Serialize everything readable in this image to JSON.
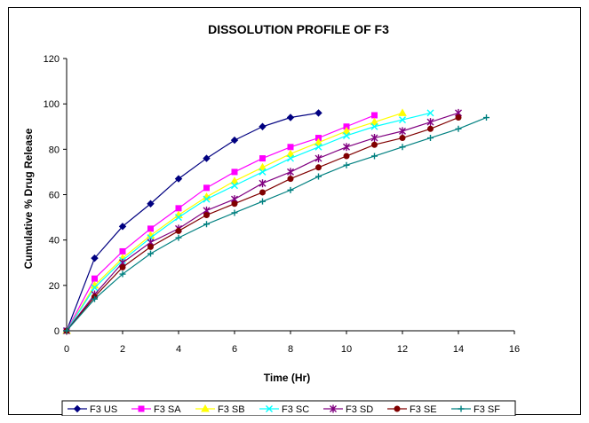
{
  "chart_data": {
    "type": "line",
    "title": "DISSOLUTION PROFILE OF F3",
    "xlabel": "Time (Hr)",
    "ylabel": "Cumulative % Drug Release",
    "xlim": [
      0,
      16
    ],
    "ylim": [
      0,
      120
    ],
    "xticks": [
      "0",
      "2",
      "4",
      "6",
      "8",
      "10",
      "12",
      "14",
      "16"
    ],
    "yticks": [
      "0",
      "20",
      "40",
      "60",
      "80",
      "100",
      "120"
    ],
    "grid": false,
    "legend_position": "bottom",
    "series": [
      {
        "name": "F3 US",
        "color": "#000080",
        "marker": "diamond",
        "x": [
          0,
          1,
          2,
          3,
          4,
          5,
          6,
          7,
          8,
          9
        ],
        "y": [
          0,
          32,
          46,
          56,
          67,
          76,
          84,
          90,
          94,
          96
        ]
      },
      {
        "name": "F3 SA",
        "color": "#ff00ff",
        "marker": "square",
        "x": [
          0,
          1,
          2,
          3,
          4,
          5,
          6,
          7,
          8,
          9,
          10,
          11
        ],
        "y": [
          0,
          23,
          35,
          45,
          54,
          63,
          70,
          76,
          81,
          85,
          90,
          95
        ]
      },
      {
        "name": "F3 SB",
        "color": "#ffff00",
        "marker": "triangle",
        "x": [
          0,
          1,
          2,
          3,
          4,
          5,
          6,
          7,
          8,
          9,
          10,
          11,
          12
        ],
        "y": [
          0,
          20,
          32,
          42,
          51,
          59,
          66,
          72,
          78,
          83,
          88,
          92,
          96
        ]
      },
      {
        "name": "F3 SC",
        "color": "#00ffff",
        "marker": "x",
        "x": [
          0,
          1,
          2,
          3,
          4,
          5,
          6,
          7,
          8,
          9,
          10,
          11,
          12,
          13
        ],
        "y": [
          0,
          19,
          31,
          41,
          50,
          58,
          64,
          70,
          76,
          81,
          86,
          90,
          93,
          96
        ]
      },
      {
        "name": "F3 SD",
        "color": "#800080",
        "marker": "star",
        "x": [
          0,
          1,
          2,
          3,
          4,
          5,
          6,
          7,
          8,
          9,
          10,
          11,
          12,
          13,
          14
        ],
        "y": [
          0,
          16,
          30,
          39,
          45,
          53,
          58,
          65,
          70,
          76,
          81,
          85,
          88,
          92,
          96
        ]
      },
      {
        "name": "F3 SE",
        "color": "#800000",
        "marker": "circle",
        "x": [
          0,
          1,
          2,
          3,
          4,
          5,
          6,
          7,
          8,
          9,
          10,
          11,
          12,
          13,
          14
        ],
        "y": [
          0,
          15,
          28,
          37,
          44,
          51,
          56,
          61,
          67,
          72,
          77,
          82,
          85,
          89,
          94
        ]
      },
      {
        "name": "F3 SF",
        "color": "#008080",
        "marker": "plus",
        "x": [
          0,
          1,
          2,
          3,
          4,
          5,
          6,
          7,
          8,
          9,
          10,
          11,
          12,
          13,
          14,
          15
        ],
        "y": [
          0,
          14,
          25,
          34,
          41,
          47,
          52,
          57,
          62,
          68,
          73,
          77,
          81,
          85,
          89,
          94
        ]
      }
    ]
  }
}
